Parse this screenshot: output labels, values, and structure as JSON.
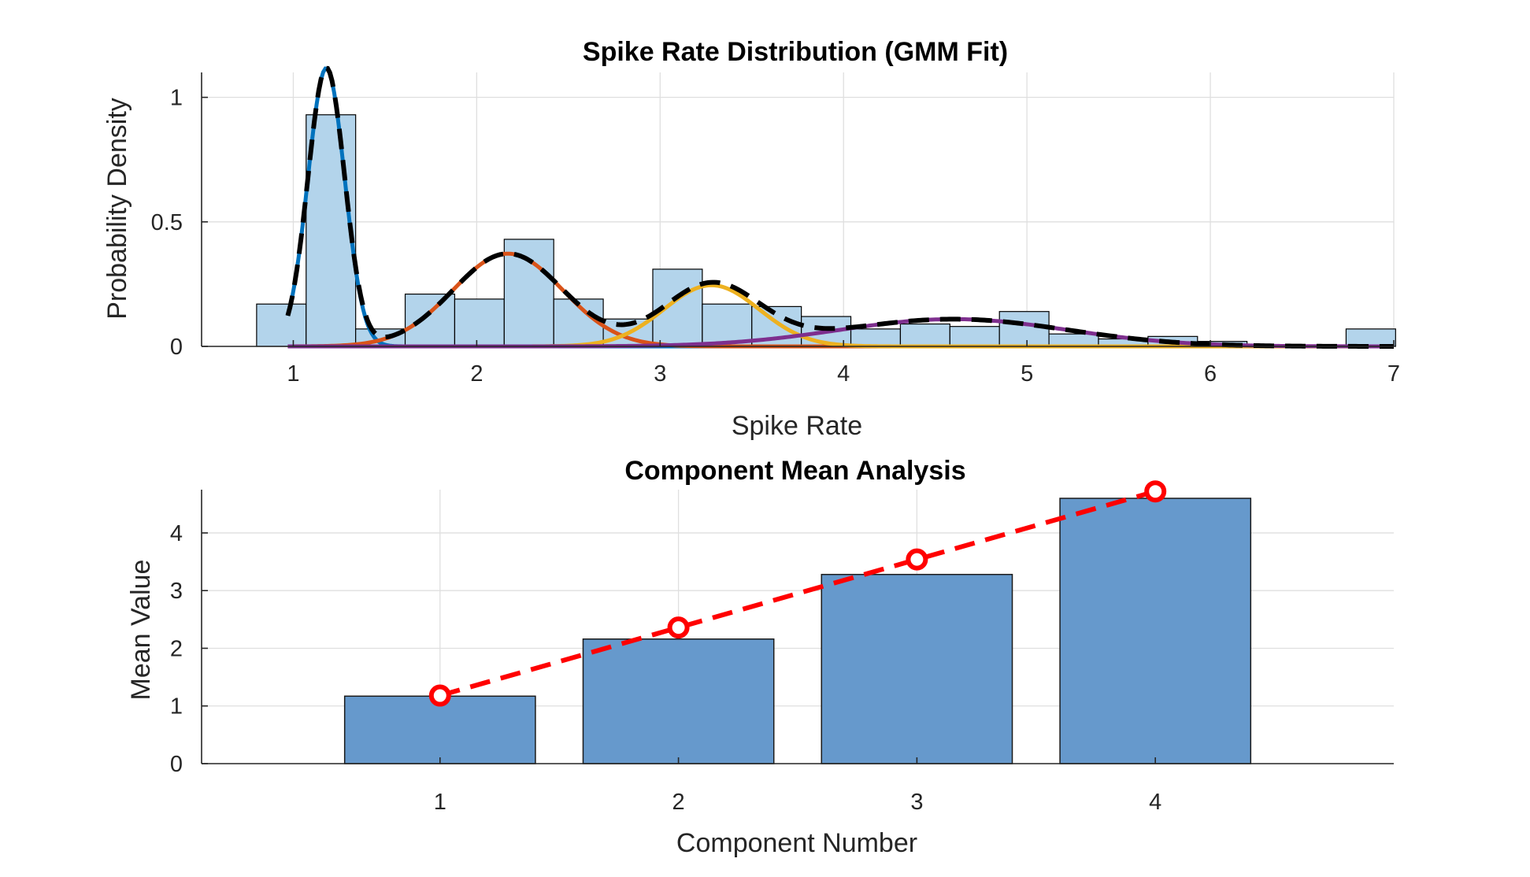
{
  "chart_data": [
    {
      "type": "bar",
      "subtype": "histogram-with-gmm-fit",
      "title": "Spike Rate Distribution (GMM Fit)",
      "xlabel": "Spike Rate",
      "ylabel": "Probability Density",
      "xlim": [
        0.5,
        7
      ],
      "ylim": [
        0,
        1.1
      ],
      "xticks": [
        1,
        2,
        3,
        4,
        5,
        6,
        7
      ],
      "yticks": [
        0,
        0.5,
        1
      ],
      "ytick_labels": [
        "0",
        "0.5",
        "1"
      ],
      "grid": true,
      "bin_width": 0.27,
      "bin_edges_start": 0.8,
      "bin_density": [
        0.17,
        0.93,
        0.07,
        0.21,
        0.19,
        0.43,
        0.19,
        0.11,
        0.31,
        0.17,
        0.16,
        0.12,
        0.07,
        0.09,
        0.08,
        0.14,
        0.05,
        0.03,
        0.04,
        0.02,
        0.0,
        0.0,
        0.07
      ],
      "bar_color": "#b3d4eb",
      "components": [
        {
          "mean": 1.18,
          "sigma": 0.1,
          "weight": 0.28,
          "color": "#0072bd"
        },
        {
          "mean": 2.17,
          "sigma": 0.3,
          "weight": 0.28,
          "color": "#d95319"
        },
        {
          "mean": 3.28,
          "sigma": 0.26,
          "weight": 0.16,
          "color": "#edb120"
        },
        {
          "mean": 4.6,
          "sigma": 0.62,
          "weight": 0.17,
          "color": "#7e2f8e"
        }
      ],
      "curve_x_range": [
        0.97,
        7
      ],
      "total_fit_color": "#000000"
    },
    {
      "type": "bar",
      "title": "Component Mean Analysis",
      "xlabel": "Component Number",
      "ylabel": "Mean Value",
      "xlim": [
        0,
        5
      ],
      "ylim": [
        0,
        4.75
      ],
      "xticks": [
        1,
        2,
        3,
        4
      ],
      "yticks": [
        0,
        1,
        2,
        3,
        4
      ],
      "grid": true,
      "categories": [
        "1",
        "2",
        "3",
        "4"
      ],
      "values": [
        1.17,
        2.16,
        3.28,
        4.6
      ],
      "bar_color": "#6699cc",
      "overlay": {
        "type": "line",
        "style": "dashed-with-circle-markers",
        "values": [
          1.18,
          2.36,
          3.54,
          4.72
        ],
        "color": "#ff0000"
      }
    }
  ]
}
